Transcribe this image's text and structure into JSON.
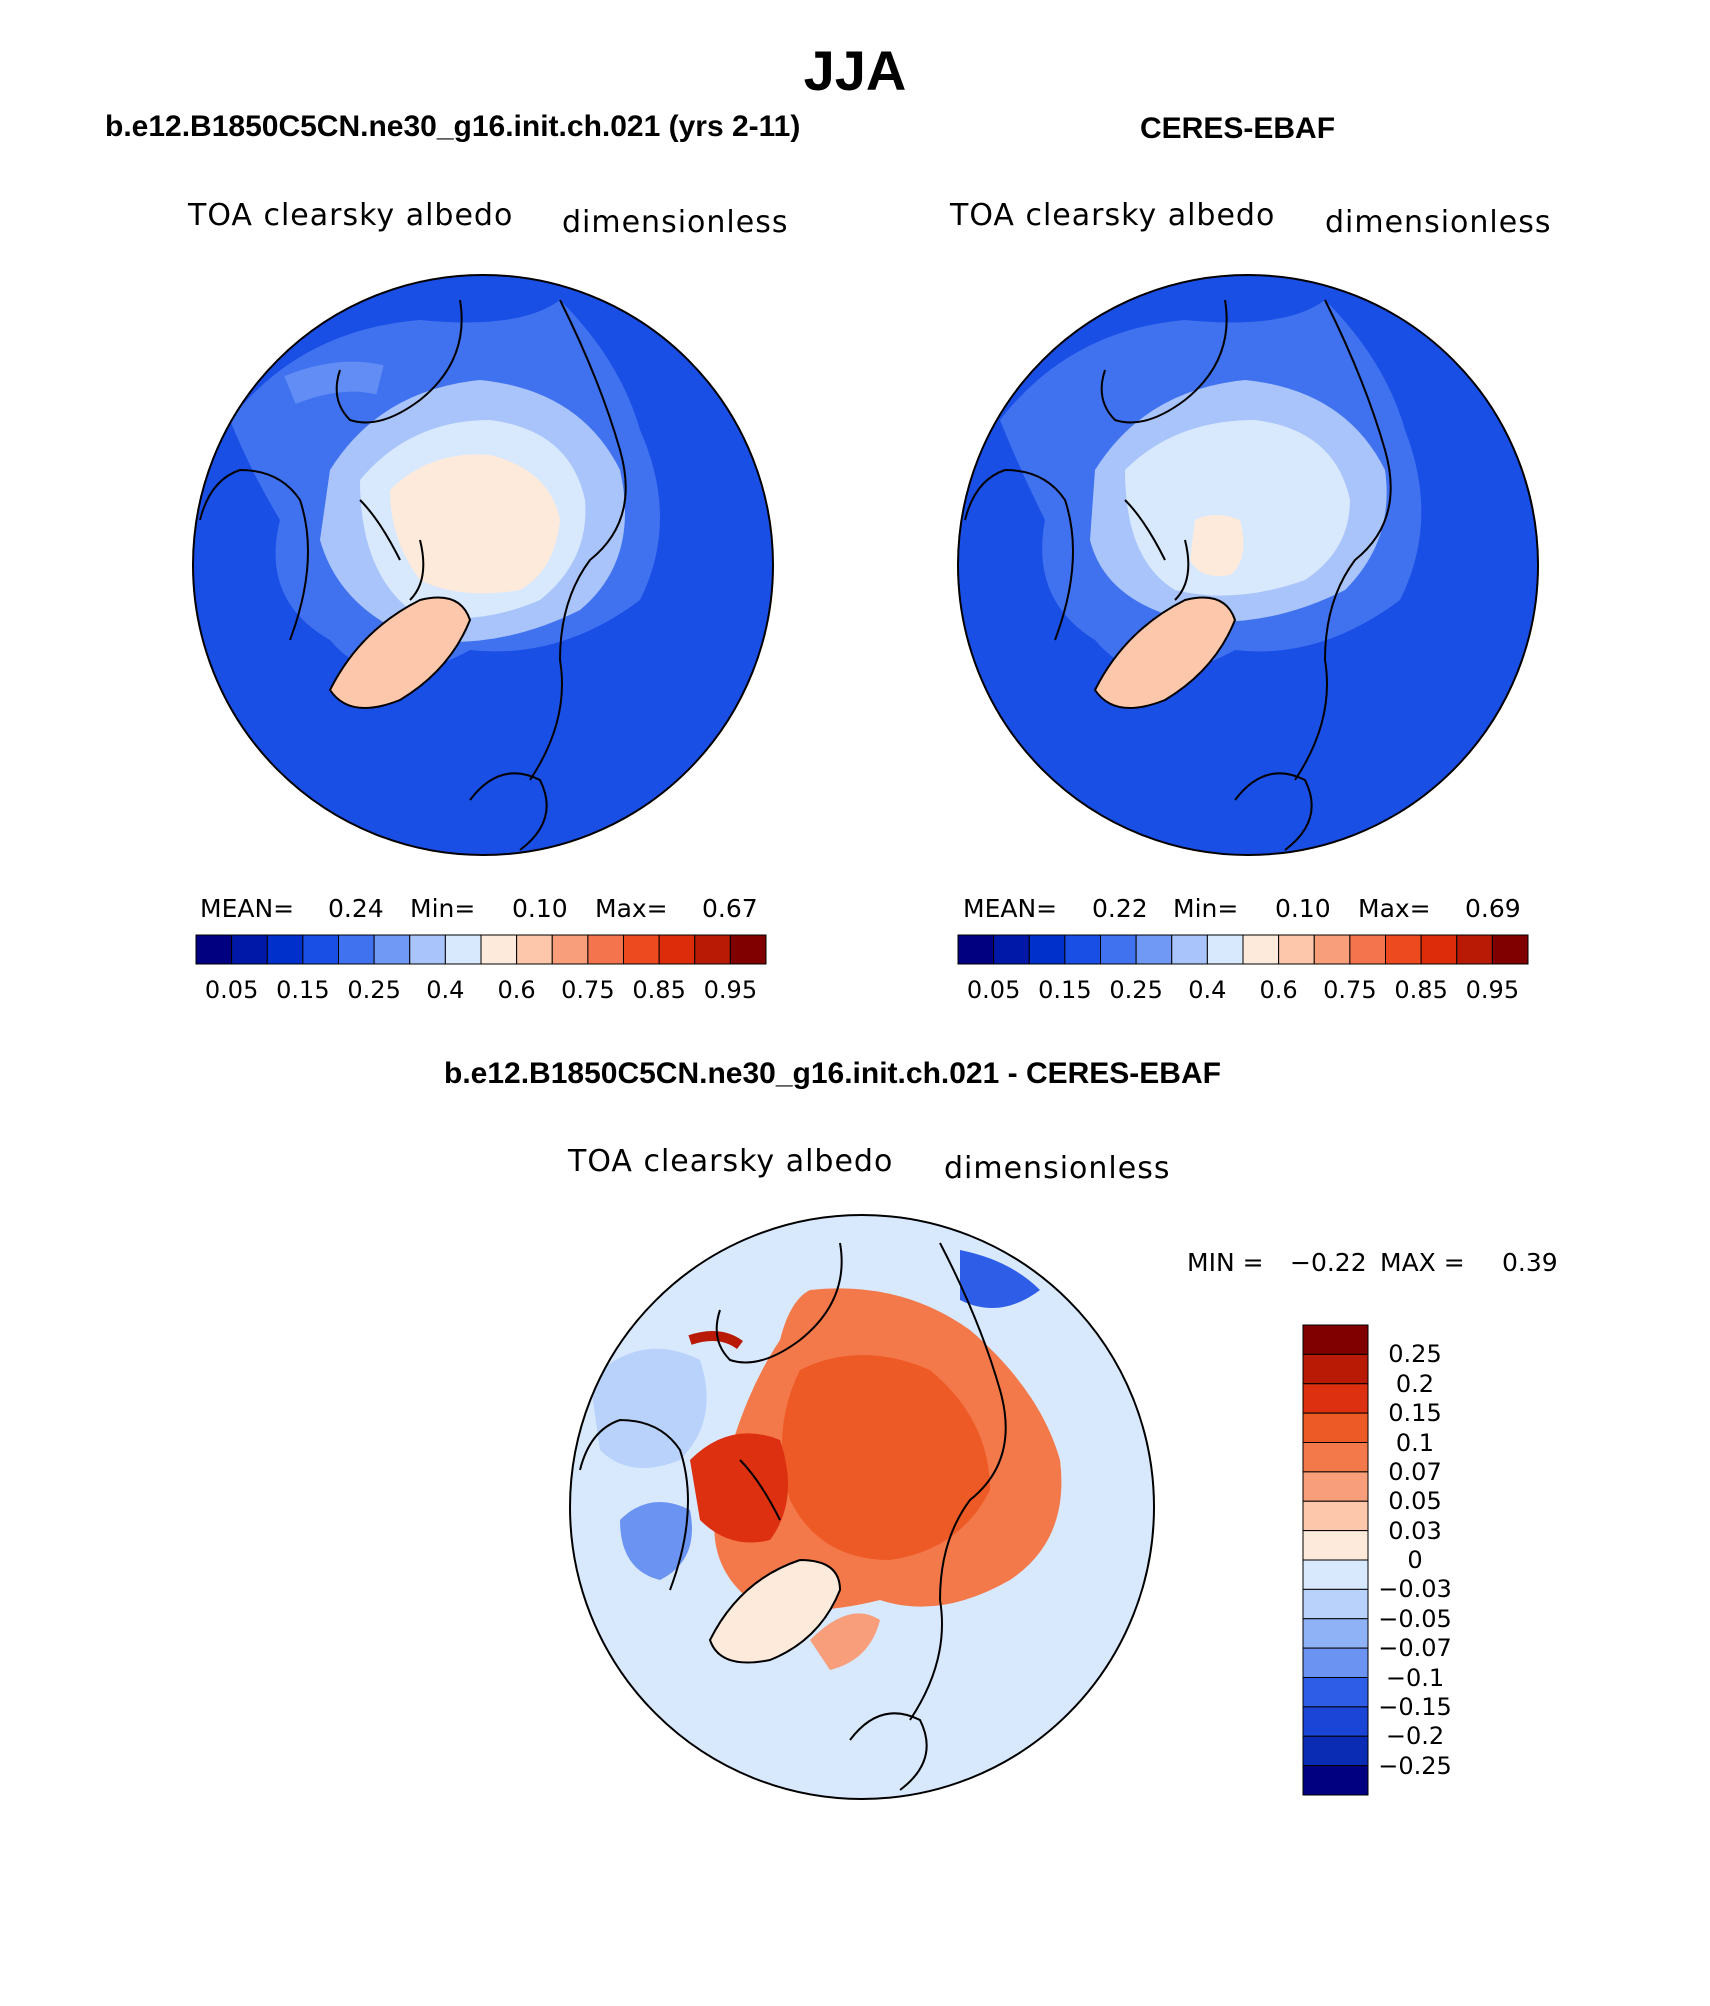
{
  "figure": {
    "season": "JJA",
    "diff_title": "b.e12.B1850C5CN.ne30_g16.init.ch.021 - CERES-EBAF"
  },
  "panels": [
    {
      "title": "b.e12.B1850C5CN.ne30_g16.init.ch.021 (yrs 2-11)",
      "variable": "TOA clearsky albedo",
      "units": "dimensionless",
      "stats": {
        "mean_label": "MEAN=",
        "mean": "0.24",
        "min_label": "Min=",
        "min": "0.10",
        "max_label": "Max=",
        "max": "0.67"
      }
    },
    {
      "title": "CERES-EBAF",
      "variable": "TOA clearsky albedo",
      "units": "dimensionless",
      "stats": {
        "mean_label": "MEAN=",
        "mean": "0.22",
        "min_label": "Min=",
        "min": "0.10",
        "max_label": "Max=",
        "max": "0.69"
      }
    }
  ],
  "diff_panel": {
    "variable": "TOA clearsky albedo",
    "units": "dimensionless",
    "stats": {
      "min_label": "MIN =",
      "min": "−0.22",
      "max_label": "MAX =",
      "max": "0.39"
    }
  },
  "colorbars": {
    "abs": {
      "colors": [
        "#000080",
        "#0018a8",
        "#0030cc",
        "#1a4fe6",
        "#4072f0",
        "#7099f5",
        "#a8c4fa",
        "#d8e8fd",
        "#feeadb",
        "#fcc7aa",
        "#f89e7a",
        "#f4744d",
        "#ee4a20",
        "#dc2c0a",
        "#b81a05",
        "#800000"
      ],
      "labels": [
        "0.05",
        "0.15",
        "0.25",
        "0.4",
        "0.6",
        "0.75",
        "0.85",
        "0.95"
      ]
    },
    "diff": {
      "colors": [
        "#800000",
        "#b81a05",
        "#dc3010",
        "#ee5a26",
        "#f4794a",
        "#f89e7a",
        "#fcc7aa",
        "#feeadb",
        "#d8e8fd",
        "#b8d2fb",
        "#8fb2f7",
        "#6b94f2",
        "#2e5ee8",
        "#1a45d6",
        "#0a2cb4",
        "#000080"
      ],
      "labels": [
        "0.25",
        "0.2",
        "0.15",
        "0.1",
        "0.07",
        "0.05",
        "0.03",
        "0",
        "−0.03",
        "−0.05",
        "−0.07",
        "−0.1",
        "−0.15",
        "−0.2",
        "−0.25"
      ]
    }
  }
}
